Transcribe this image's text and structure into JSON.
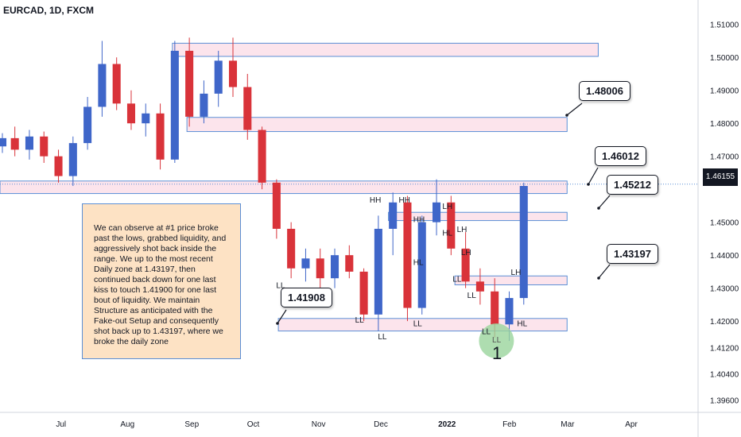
{
  "header": {
    "symbol": "EURCAD, 1D, FXCM"
  },
  "axis": {
    "price_labels": [
      "1.51000",
      "1.50000",
      "1.49000",
      "1.48000",
      "1.47000",
      "1.45000",
      "1.44000",
      "1.43000",
      "1.42000",
      "1.41200",
      "1.40400",
      "1.39600"
    ],
    "time_labels": [
      "Jul",
      "Aug",
      "Sep",
      "Oct",
      "Nov",
      "Dec",
      "2022",
      "Feb",
      "Mar",
      "Apr"
    ]
  },
  "current_price": "1.46155",
  "colors": {
    "up": "#3f66c9",
    "down": "#d9333a",
    "zone_fill": "#fce4ec",
    "zone_border": "#5b8fd6",
    "circle": "#9ad49c"
  },
  "chart_data": {
    "type": "candlestick",
    "interval": "1D",
    "symbol": "EURCAD",
    "x_range": [
      "2021-06-01",
      "2022-04-30"
    ],
    "y_range": [
      1.394,
      1.515
    ],
    "zones": [
      {
        "from": "2021-08-23",
        "to": "2022-03-16",
        "low": 1.5003,
        "high": 1.5043
      },
      {
        "from": "2021-08-30",
        "to": "2022-03-01",
        "low": 1.4775,
        "high": 1.4818
      },
      {
        "from": "2021-06-01",
        "to": "2022-03-01",
        "low": 1.4587,
        "high": 1.4625
      },
      {
        "from": "2021-12-05",
        "to": "2022-03-01",
        "low": 1.4505,
        "high": 1.453
      },
      {
        "from": "2022-01-06",
        "to": "2022-03-01",
        "low": 1.431,
        "high": 1.4337
      },
      {
        "from": "2021-10-13",
        "to": "2022-03-01",
        "low": 1.417,
        "high": 1.4208
      }
    ],
    "labels": [
      "1.48006",
      "1.46012",
      "1.45212",
      "1.43197",
      "1.41908"
    ],
    "swing_labels": [
      "HH",
      "HH",
      "HH",
      "HL",
      "HL",
      "LH",
      "LH",
      "LH",
      "LH",
      "LL",
      "LL",
      "LL",
      "LL",
      "LL",
      "LL",
      "LL",
      "HL",
      "LL",
      "1"
    ],
    "candles": [
      {
        "d": "2021-06-01",
        "o": 1.473,
        "h": 1.477,
        "l": 1.471,
        "c": 1.4755
      },
      {
        "d": "2021-06-07",
        "o": 1.4755,
        "h": 1.479,
        "l": 1.47,
        "c": 1.472
      },
      {
        "d": "2021-06-14",
        "o": 1.472,
        "h": 1.478,
        "l": 1.469,
        "c": 1.476
      },
      {
        "d": "2021-06-21",
        "o": 1.476,
        "h": 1.4775,
        "l": 1.468,
        "c": 1.47
      },
      {
        "d": "2021-06-28",
        "o": 1.47,
        "h": 1.472,
        "l": 1.462,
        "c": 1.464
      },
      {
        "d": "2021-07-05",
        "o": 1.464,
        "h": 1.476,
        "l": 1.461,
        "c": 1.474
      },
      {
        "d": "2021-07-12",
        "o": 1.474,
        "h": 1.488,
        "l": 1.472,
        "c": 1.485
      },
      {
        "d": "2021-07-19",
        "o": 1.485,
        "h": 1.505,
        "l": 1.482,
        "c": 1.498
      },
      {
        "d": "2021-07-26",
        "o": 1.498,
        "h": 1.5,
        "l": 1.484,
        "c": 1.486
      },
      {
        "d": "2021-08-02",
        "o": 1.486,
        "h": 1.49,
        "l": 1.478,
        "c": 1.48
      },
      {
        "d": "2021-08-09",
        "o": 1.48,
        "h": 1.486,
        "l": 1.476,
        "c": 1.483
      },
      {
        "d": "2021-08-16",
        "o": 1.483,
        "h": 1.486,
        "l": 1.466,
        "c": 1.469
      },
      {
        "d": "2021-08-23",
        "o": 1.469,
        "h": 1.505,
        "l": 1.468,
        "c": 1.502
      },
      {
        "d": "2021-08-30",
        "o": 1.502,
        "h": 1.506,
        "l": 1.479,
        "c": 1.482
      },
      {
        "d": "2021-09-06",
        "o": 1.482,
        "h": 1.493,
        "l": 1.48,
        "c": 1.489
      },
      {
        "d": "2021-09-13",
        "o": 1.489,
        "h": 1.502,
        "l": 1.485,
        "c": 1.499
      },
      {
        "d": "2021-09-20",
        "o": 1.499,
        "h": 1.506,
        "l": 1.488,
        "c": 1.491
      },
      {
        "d": "2021-09-27",
        "o": 1.491,
        "h": 1.495,
        "l": 1.475,
        "c": 1.478
      },
      {
        "d": "2021-10-04",
        "o": 1.478,
        "h": 1.479,
        "l": 1.46,
        "c": 1.462
      },
      {
        "d": "2021-10-11",
        "o": 1.462,
        "h": 1.463,
        "l": 1.445,
        "c": 1.448
      },
      {
        "d": "2021-10-18",
        "o": 1.448,
        "h": 1.45,
        "l": 1.433,
        "c": 1.436
      },
      {
        "d": "2021-10-25",
        "o": 1.436,
        "h": 1.442,
        "l": 1.432,
        "c": 1.439
      },
      {
        "d": "2021-11-01",
        "o": 1.439,
        "h": 1.442,
        "l": 1.43,
        "c": 1.433
      },
      {
        "d": "2021-11-08",
        "o": 1.433,
        "h": 1.442,
        "l": 1.43,
        "c": 1.44
      },
      {
        "d": "2021-11-15",
        "o": 1.44,
        "h": 1.443,
        "l": 1.433,
        "c": 1.435
      },
      {
        "d": "2021-11-22",
        "o": 1.435,
        "h": 1.436,
        "l": 1.42,
        "c": 1.422
      },
      {
        "d": "2021-11-29",
        "o": 1.422,
        "h": 1.452,
        "l": 1.417,
        "c": 1.448
      },
      {
        "d": "2021-12-06",
        "o": 1.448,
        "h": 1.459,
        "l": 1.44,
        "c": 1.456
      },
      {
        "d": "2021-12-13",
        "o": 1.456,
        "h": 1.458,
        "l": 1.42,
        "c": 1.424
      },
      {
        "d": "2021-12-20",
        "o": 1.424,
        "h": 1.452,
        "l": 1.422,
        "c": 1.45
      },
      {
        "d": "2021-12-27",
        "o": 1.45,
        "h": 1.463,
        "l": 1.446,
        "c": 1.456
      },
      {
        "d": "2022-01-03",
        "o": 1.456,
        "h": 1.458,
        "l": 1.44,
        "c": 1.442
      },
      {
        "d": "2022-01-10",
        "o": 1.442,
        "h": 1.447,
        "l": 1.43,
        "c": 1.432
      },
      {
        "d": "2022-01-17",
        "o": 1.432,
        "h": 1.436,
        "l": 1.425,
        "c": 1.429
      },
      {
        "d": "2022-01-24",
        "o": 1.429,
        "h": 1.433,
        "l": 1.415,
        "c": 1.419
      },
      {
        "d": "2022-01-31",
        "o": 1.419,
        "h": 1.429,
        "l": 1.414,
        "c": 1.427
      },
      {
        "d": "2022-02-07",
        "o": 1.427,
        "h": 1.462,
        "l": 1.425,
        "c": 1.461
      }
    ]
  }
}
